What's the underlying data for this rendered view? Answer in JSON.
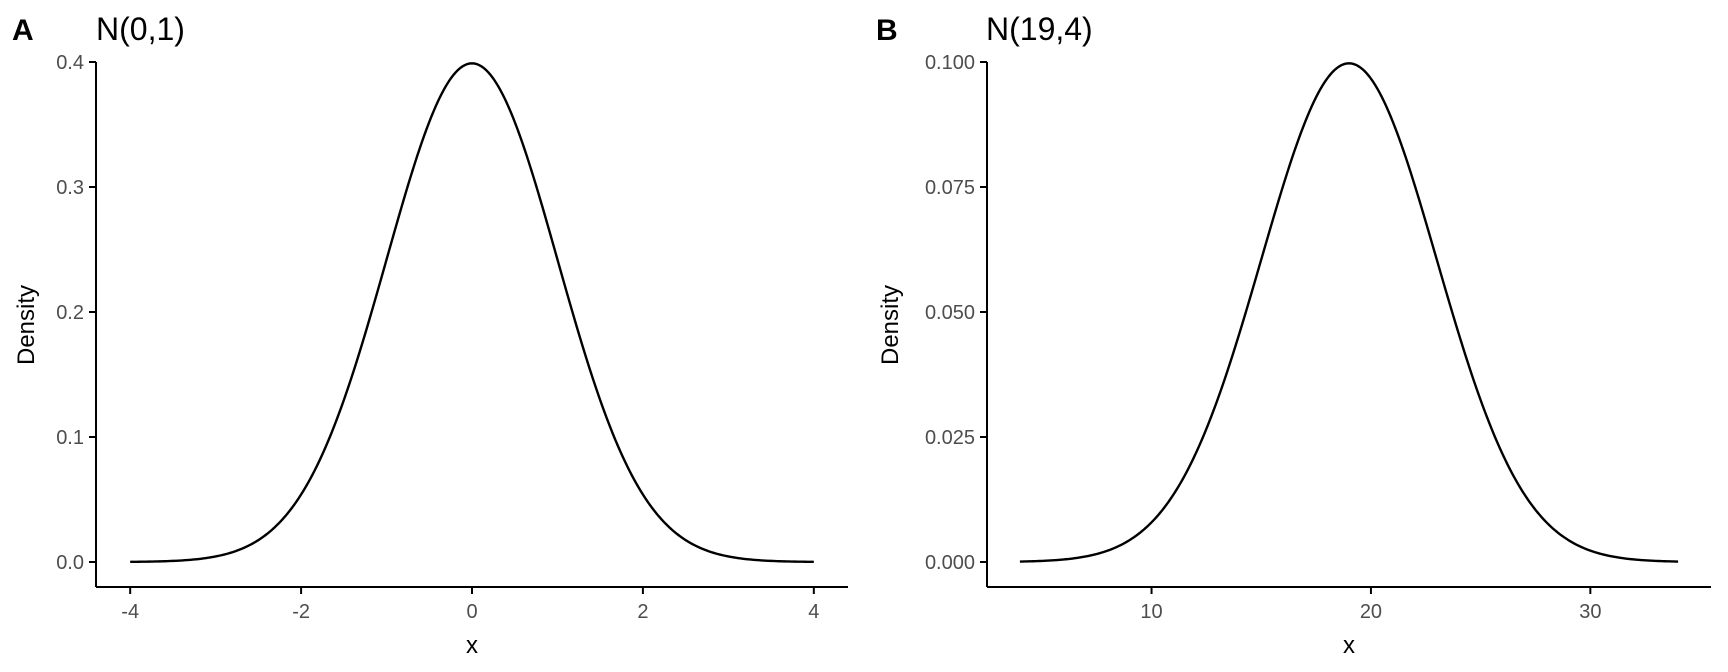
{
  "chart_data": [
    {
      "type": "line",
      "tag": "A",
      "title": "N(0,1)",
      "xlabel": "x",
      "ylabel": "Density",
      "distribution": {
        "mean": 0,
        "sd": 1
      },
      "x_range": [
        -4,
        4
      ],
      "xlim": [
        -4.4,
        4.4
      ],
      "ylim": [
        -0.02,
        0.4
      ],
      "x_ticks": [
        -4,
        -2,
        0,
        2,
        4
      ],
      "x_tick_labels": [
        "-4",
        "-2",
        "0",
        "2",
        "4"
      ],
      "y_ticks": [
        0,
        0.1,
        0.2,
        0.3,
        0.4
      ],
      "y_tick_labels": [
        "0.0",
        "0.1",
        "0.2",
        "0.3",
        "0.4"
      ],
      "grid": false,
      "line_color": "#000000"
    },
    {
      "type": "line",
      "tag": "B",
      "title": "N(19,4)",
      "xlabel": "x",
      "ylabel": "Density",
      "distribution": {
        "mean": 19,
        "sd": 4
      },
      "x_range": [
        4,
        34
      ],
      "xlim": [
        2.5,
        35.5
      ],
      "ylim": [
        -0.005,
        0.1
      ],
      "x_ticks": [
        10,
        20,
        30
      ],
      "x_tick_labels": [
        "10",
        "20",
        "30"
      ],
      "y_ticks": [
        0,
        0.025,
        0.05,
        0.075,
        0.1
      ],
      "y_tick_labels": [
        "0.000",
        "0.025",
        "0.050",
        "0.075",
        "0.100"
      ],
      "grid": false,
      "line_color": "#000000"
    }
  ]
}
